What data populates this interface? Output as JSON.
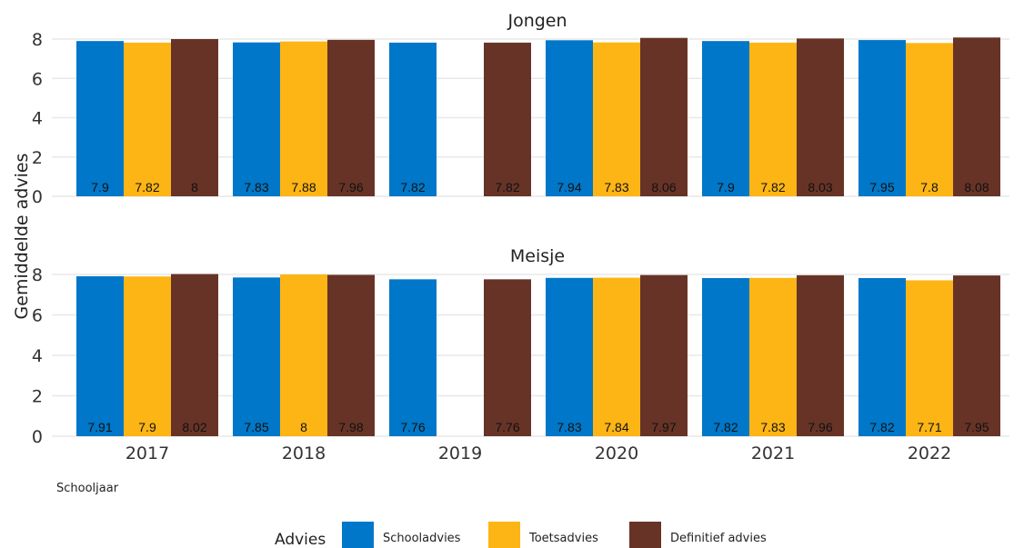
{
  "chart_data": {
    "type": "bar",
    "ylabel": "Gemiddelde advies",
    "xlabel": "Schooljaar",
    "categories": [
      "2017",
      "2018",
      "2019",
      "2020",
      "2021",
      "2022"
    ],
    "ylim": [
      0,
      8.2
    ],
    "yticks": [
      "0",
      "2",
      "4",
      "6",
      "8"
    ],
    "grid": true,
    "legend": {
      "title": "Advies",
      "placement": "bottom",
      "entries": [
        "Schooladvies",
        "Toetsadvies",
        "Definitief advies"
      ]
    },
    "colors": [
      "#0077c8",
      "#fdb515",
      "#673327"
    ],
    "facets": [
      {
        "title": "Jongen",
        "series": [
          {
            "name": "Schooladvies",
            "values": [
              7.9,
              7.83,
              7.82,
              7.94,
              7.9,
              7.95
            ],
            "labels": [
              "7.9",
              "7.83",
              "7.82",
              "7.94",
              "7.9",
              "7.95"
            ]
          },
          {
            "name": "Toetsadvies",
            "values": [
              7.82,
              7.88,
              null,
              7.83,
              7.82,
              7.8
            ],
            "labels": [
              "7.82",
              "7.88",
              "",
              "7.83",
              "7.82",
              "7.8"
            ]
          },
          {
            "name": "Definitief advies",
            "values": [
              8,
              7.96,
              7.82,
              8.06,
              8.03,
              8.08
            ],
            "labels": [
              "8",
              "7.96",
              "7.82",
              "8.06",
              "8.03",
              "8.08"
            ]
          }
        ]
      },
      {
        "title": "Meisje",
        "series": [
          {
            "name": "Schooladvies",
            "values": [
              7.91,
              7.85,
              7.76,
              7.83,
              7.82,
              7.82
            ],
            "labels": [
              "7.91",
              "7.85",
              "7.76",
              "7.83",
              "7.82",
              "7.82"
            ]
          },
          {
            "name": "Toetsadvies",
            "values": [
              7.9,
              8,
              null,
              7.84,
              7.83,
              7.71
            ],
            "labels": [
              "7.9",
              "8",
              "",
              "7.84",
              "7.83",
              "7.71"
            ]
          },
          {
            "name": "Definitief advies",
            "values": [
              8.02,
              7.98,
              7.76,
              7.97,
              7.96,
              7.95
            ],
            "labels": [
              "8.02",
              "7.98",
              "7.76",
              "7.97",
              "7.96",
              "7.95"
            ]
          }
        ]
      }
    ]
  }
}
